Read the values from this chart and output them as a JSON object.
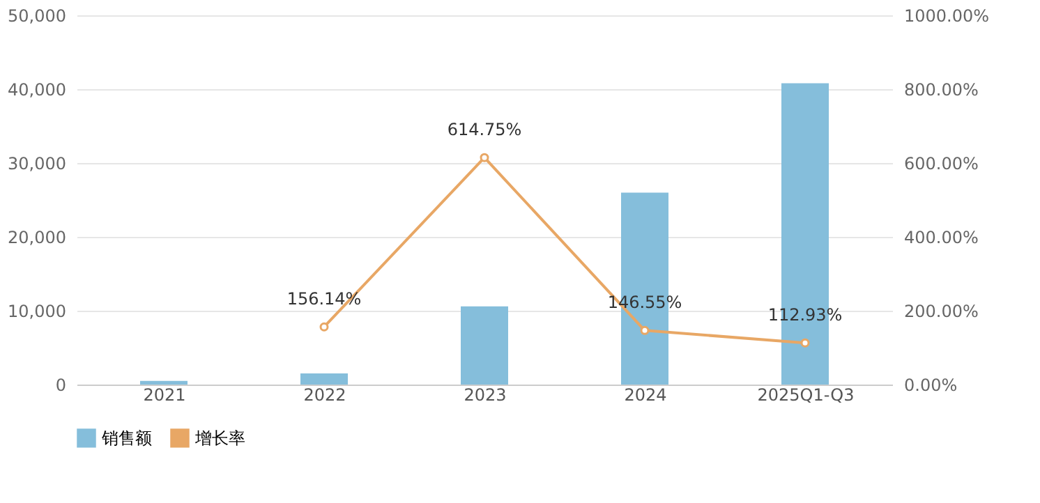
{
  "chart_data": {
    "type": "bar",
    "categories": [
      "2021",
      "2022",
      "2023",
      "2024",
      "2025Q1-Q3"
    ],
    "series": [
      {
        "name": "销售额",
        "color": "#85bedb",
        "values": [
          500,
          1500,
          10600,
          26000,
          40800
        ]
      },
      {
        "name": "增长率",
        "type": "line",
        "axis": "y2",
        "color": "#e8a765",
        "marker": "circle",
        "line_style": "solid",
        "values": [
          null,
          156.14,
          614.75,
          146.55,
          112.93
        ],
        "value_labels": [
          null,
          "156.14%",
          "614.75%",
          "146.55%",
          "112.93%"
        ]
      }
    ],
    "ylim": [
      0,
      50000
    ],
    "yticks": [
      0,
      {
        "value": 10000,
        "label": "10,000"
      },
      {
        "value": 20000,
        "label": "20,000"
      },
      {
        "value": 30000,
        "label": "30,000"
      },
      {
        "value": 40000,
        "label": "40,000"
      },
      {
        "value": 50000,
        "label": "50,000"
      }
    ],
    "y2lim": [
      0,
      1000
    ],
    "y2ticks": [
      {
        "value": 0,
        "label": "0.00%"
      },
      {
        "value": 200,
        "label": "200.00%"
      },
      {
        "value": 400,
        "label": "400.00%"
      },
      {
        "value": 600,
        "label": "600.00%"
      },
      {
        "value": 800,
        "label": "800.00%"
      },
      {
        "value": 1000,
        "label": "1000.00%"
      }
    ],
    "grid": "y",
    "legend": "bottom"
  }
}
